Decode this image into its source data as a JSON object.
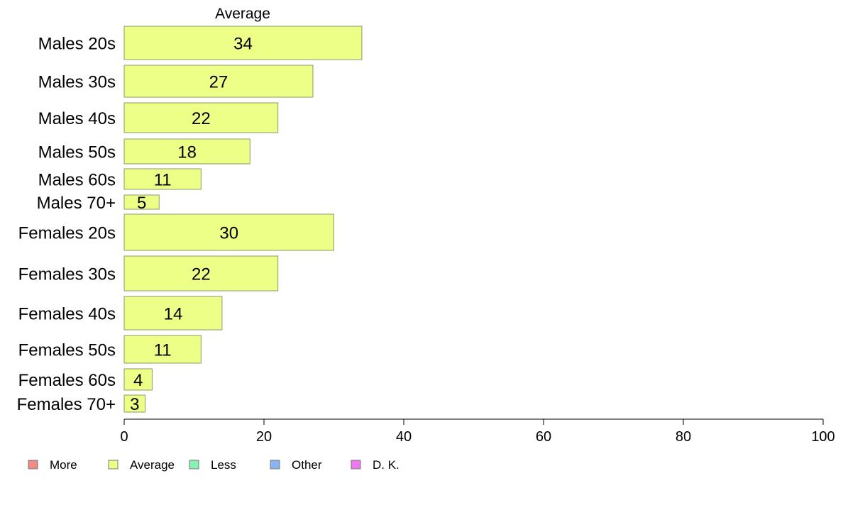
{
  "chart_data": {
    "type": "bar",
    "orientation": "horizontal",
    "panel_title": "Average",
    "categories": [
      "Males 20s",
      "Males 30s",
      "Males 40s",
      "Males 50s",
      "Males 60s",
      "Males 70+",
      "Females 20s",
      "Females 30s",
      "Females 40s",
      "Females 50s",
      "Females 60s",
      "Females 70+"
    ],
    "values": [
      34,
      27,
      22,
      18,
      11,
      5,
      30,
      22,
      14,
      11,
      4,
      3
    ],
    "xlim": [
      0,
      100
    ],
    "xticks": [
      "0",
      "20",
      "40",
      "60",
      "80",
      "100"
    ],
    "grid": false,
    "bar_color": "#eeff88",
    "bar_stroke": "#8a9a6a",
    "legend": {
      "placement": "bottom-left",
      "entries": [
        {
          "label": "More",
          "color": "#f28b85"
        },
        {
          "label": "Average",
          "color": "#eeff88"
        },
        {
          "label": "Less",
          "color": "#88f2b5"
        },
        {
          "label": "Other",
          "color": "#88b5f2"
        },
        {
          "label": "D. K.",
          "color": "#ee77f2"
        }
      ]
    }
  }
}
